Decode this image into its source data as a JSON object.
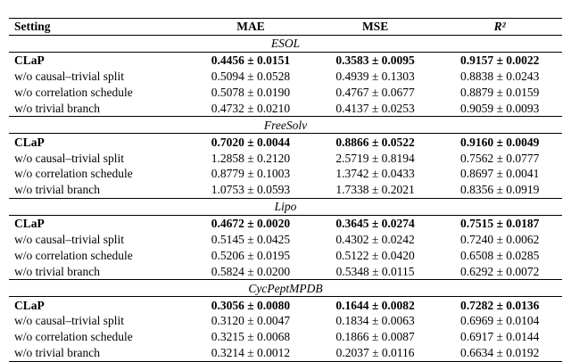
{
  "table": {
    "columns": [
      "Setting",
      "MAE",
      "MSE",
      "R²"
    ],
    "sections": [
      {
        "title": "ESOL",
        "rows": [
          [
            "CLaP",
            "0.4456 ± 0.0151",
            "0.3583 ± 0.0095",
            "0.9157 ± 0.0022"
          ],
          [
            "w/o causal–trivial split",
            "0.5094 ± 0.0528",
            "0.4939 ± 0.1303",
            "0.8838 ± 0.0243"
          ],
          [
            "w/o correlation schedule",
            "0.5078 ± 0.0190",
            "0.4767 ± 0.0677",
            "0.8879 ± 0.0159"
          ],
          [
            "w/o trivial branch",
            "0.4732 ± 0.0210",
            "0.4137 ± 0.0253",
            "0.9059 ± 0.0093"
          ]
        ]
      },
      {
        "title": "FreeSolv",
        "rows": [
          [
            "CLaP",
            "0.7020 ± 0.0044",
            "0.8866 ± 0.0522",
            "0.9160 ± 0.0049"
          ],
          [
            "w/o causal–trivial split",
            "1.2858 ± 0.2120",
            "2.5719 ± 0.8194",
            "0.7562 ± 0.0777"
          ],
          [
            "w/o correlation schedule",
            "0.8779 ± 0.1003",
            "1.3742 ± 0.0433",
            "0.8697 ± 0.0041"
          ],
          [
            "w/o trivial branch",
            "1.0753 ± 0.0593",
            "1.7338 ± 0.2021",
            "0.8356 ± 0.0919"
          ]
        ]
      },
      {
        "title": "Lipo",
        "rows": [
          [
            "CLaP",
            "0.4672 ± 0.0020",
            "0.3645 ± 0.0274",
            "0.7515 ± 0.0187"
          ],
          [
            "w/o causal–trivial split",
            "0.5145 ± 0.0425",
            "0.4302 ± 0.0242",
            "0.7240 ± 0.0062"
          ],
          [
            "w/o correlation schedule",
            "0.5206 ± 0.0195",
            "0.5122 ± 0.0420",
            "0.6508 ± 0.0285"
          ],
          [
            "w/o trivial branch",
            "0.5824 ± 0.0200",
            "0.5348 ± 0.0115",
            "0.6292 ± 0.0072"
          ]
        ]
      },
      {
        "title": "CycPeptMPDB",
        "rows": [
          [
            "CLaP",
            "0.3056 ± 0.0080",
            "0.1644 ± 0.0082",
            "0.7282 ± 0.0136"
          ],
          [
            "w/o causal–trivial split",
            "0.3120 ± 0.0047",
            "0.1834 ± 0.0063",
            "0.6969 ± 0.0104"
          ],
          [
            "w/o correlation schedule",
            "0.3215 ± 0.0068",
            "0.1866 ± 0.0087",
            "0.6917 ± 0.0144"
          ],
          [
            "w/o trivial branch",
            "0.3214 ± 0.0012",
            "0.2037 ± 0.0116",
            "0.6634 ± 0.0192"
          ]
        ]
      }
    ]
  }
}
